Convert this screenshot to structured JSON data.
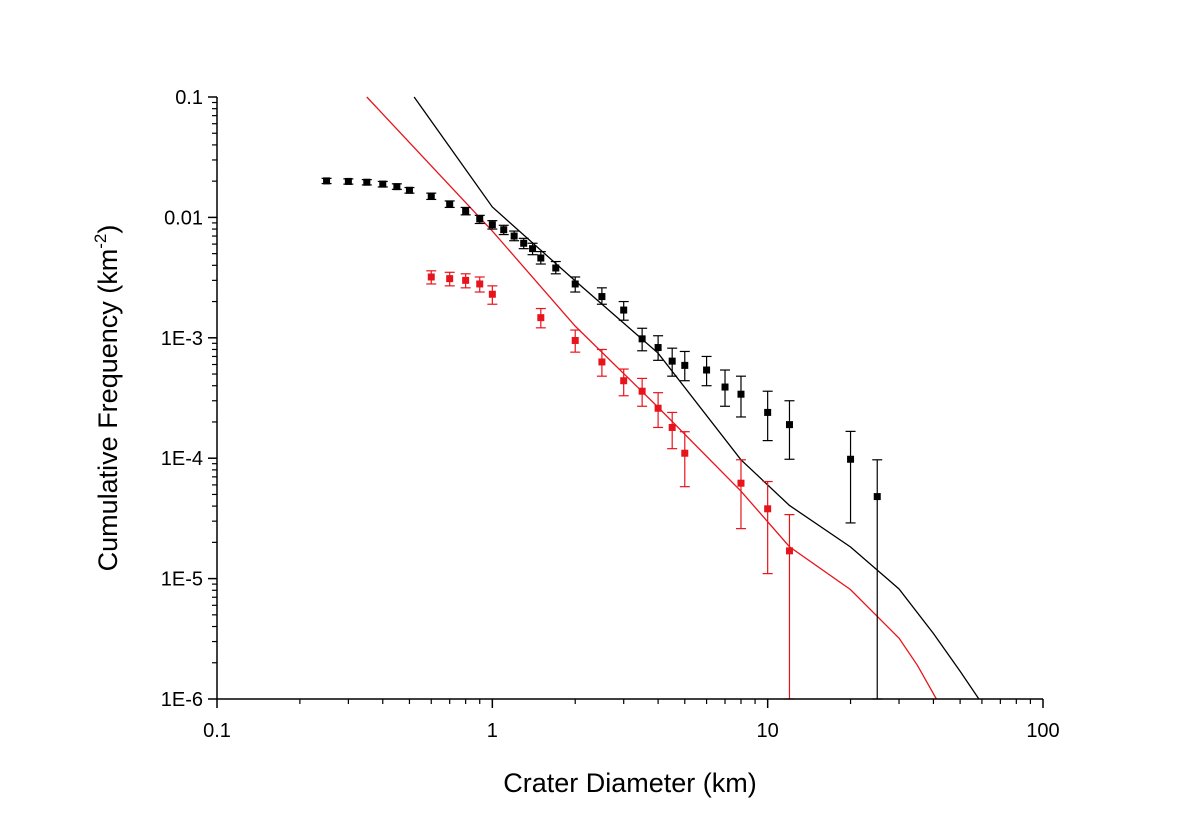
{
  "chart_data": {
    "type": "scatter",
    "title": "",
    "xlabel": "Crater Diameter (km)",
    "ylabel": "Cumulative Frequency (km",
    "ylabel_superscript": "-2",
    "ylabel_close": ")",
    "xscale": "log",
    "yscale": "log",
    "xlim": [
      0.1,
      100
    ],
    "ylim": [
      1e-06,
      0.1
    ],
    "x_ticks": [
      {
        "value": 0.1,
        "label": "0.1"
      },
      {
        "value": 1,
        "label": "1"
      },
      {
        "value": 10,
        "label": "10"
      },
      {
        "value": 100,
        "label": "100"
      }
    ],
    "y_ticks": [
      {
        "value": 0.1,
        "label": "0.1"
      },
      {
        "value": 0.01,
        "label": "0.01"
      },
      {
        "value": 0.001,
        "label": "1E-3"
      },
      {
        "value": 0.0001,
        "label": "1E-4"
      },
      {
        "value": 1e-05,
        "label": "1E-5"
      },
      {
        "value": 1e-06,
        "label": "1E-6"
      }
    ],
    "grid": false,
    "legend": "none",
    "series": [
      {
        "color": "#000000",
        "kind": "points",
        "points": [
          {
            "x": 0.25,
            "y": 0.0201,
            "lo": 0.0191,
            "hi": 0.0211
          },
          {
            "x": 0.3,
            "y": 0.0199,
            "lo": 0.0189,
            "hi": 0.0209
          },
          {
            "x": 0.35,
            "y": 0.0196,
            "lo": 0.0186,
            "hi": 0.0206
          },
          {
            "x": 0.4,
            "y": 0.0189,
            "lo": 0.0179,
            "hi": 0.0199
          },
          {
            "x": 0.45,
            "y": 0.018,
            "lo": 0.0171,
            "hi": 0.019
          },
          {
            "x": 0.5,
            "y": 0.0168,
            "lo": 0.0159,
            "hi": 0.0177
          },
          {
            "x": 0.6,
            "y": 0.015,
            "lo": 0.0141,
            "hi": 0.0159
          },
          {
            "x": 0.7,
            "y": 0.0129,
            "lo": 0.0121,
            "hi": 0.0137
          },
          {
            "x": 0.8,
            "y": 0.0113,
            "lo": 0.0105,
            "hi": 0.0121
          },
          {
            "x": 0.9,
            "y": 0.0097,
            "lo": 0.0089,
            "hi": 0.0104
          },
          {
            "x": 1.0,
            "y": 0.0087,
            "lo": 0.008,
            "hi": 0.0094
          },
          {
            "x": 1.1,
            "y": 0.0079,
            "lo": 0.0072,
            "hi": 0.0086
          },
          {
            "x": 1.2,
            "y": 0.007,
            "lo": 0.0064,
            "hi": 0.0077
          },
          {
            "x": 1.3,
            "y": 0.0061,
            "lo": 0.0055,
            "hi": 0.0067
          },
          {
            "x": 1.4,
            "y": 0.0055,
            "lo": 0.0049,
            "hi": 0.0061
          },
          {
            "x": 1.5,
            "y": 0.0046,
            "lo": 0.0041,
            "hi": 0.0052
          },
          {
            "x": 1.7,
            "y": 0.0038,
            "lo": 0.0034,
            "hi": 0.0043
          },
          {
            "x": 2.0,
            "y": 0.0028,
            "lo": 0.0024,
            "hi": 0.0032
          },
          {
            "x": 2.5,
            "y": 0.0022,
            "lo": 0.0019,
            "hi": 0.0026
          },
          {
            "x": 3.0,
            "y": 0.0017,
            "lo": 0.0014,
            "hi": 0.002
          },
          {
            "x": 3.5,
            "y": 0.00098,
            "lo": 0.00078,
            "hi": 0.0012
          },
          {
            "x": 4.0,
            "y": 0.00083,
            "lo": 0.00065,
            "hi": 0.00104
          },
          {
            "x": 4.5,
            "y": 0.00064,
            "lo": 0.00048,
            "hi": 0.00082
          },
          {
            "x": 5.0,
            "y": 0.00059,
            "lo": 0.00044,
            "hi": 0.00077
          },
          {
            "x": 6.0,
            "y": 0.00054,
            "lo": 0.0004,
            "hi": 0.0007
          },
          {
            "x": 7.0,
            "y": 0.00039,
            "lo": 0.00027,
            "hi": 0.00054
          },
          {
            "x": 8.0,
            "y": 0.00034,
            "lo": 0.00022,
            "hi": 0.00048
          },
          {
            "x": 10.0,
            "y": 0.00024,
            "lo": 0.00014,
            "hi": 0.00036
          },
          {
            "x": 12.0,
            "y": 0.00019,
            "lo": 9.8e-05,
            "hi": 0.0003
          },
          {
            "x": 20.0,
            "y": 9.8e-05,
            "lo": 2.9e-05,
            "hi": 0.000167
          },
          {
            "x": 25.0,
            "y": 4.8e-05,
            "lo": 1e-06,
            "hi": 9.7e-05
          }
        ]
      },
      {
        "color": "#e8141c",
        "kind": "points",
        "points": [
          {
            "x": 0.6,
            "y": 0.0032,
            "lo": 0.0028,
            "hi": 0.0036
          },
          {
            "x": 0.7,
            "y": 0.0031,
            "lo": 0.0027,
            "hi": 0.0035
          },
          {
            "x": 0.8,
            "y": 0.003,
            "lo": 0.0026,
            "hi": 0.0034
          },
          {
            "x": 0.9,
            "y": 0.0028,
            "lo": 0.0024,
            "hi": 0.0032
          },
          {
            "x": 1.0,
            "y": 0.0023,
            "lo": 0.0019,
            "hi": 0.0027
          },
          {
            "x": 1.5,
            "y": 0.00147,
            "lo": 0.00121,
            "hi": 0.00175
          },
          {
            "x": 2.0,
            "y": 0.00095,
            "lo": 0.00076,
            "hi": 0.00116
          },
          {
            "x": 2.5,
            "y": 0.00063,
            "lo": 0.00048,
            "hi": 0.0008
          },
          {
            "x": 3.0,
            "y": 0.00044,
            "lo": 0.00033,
            "hi": 0.00055
          },
          {
            "x": 3.5,
            "y": 0.00036,
            "lo": 0.00027,
            "hi": 0.00046
          },
          {
            "x": 4.0,
            "y": 0.00026,
            "lo": 0.00018,
            "hi": 0.00035
          },
          {
            "x": 4.5,
            "y": 0.00018,
            "lo": 0.00012,
            "hi": 0.00024
          },
          {
            "x": 5.0,
            "y": 0.00011,
            "lo": 5.8e-05,
            "hi": 0.000166
          },
          {
            "x": 8.0,
            "y": 6.2e-05,
            "lo": 2.6e-05,
            "hi": 9.7e-05
          },
          {
            "x": 10.0,
            "y": 3.8e-05,
            "lo": 1.1e-05,
            "hi": 6.4e-05
          },
          {
            "x": 12.0,
            "y": 1.7e-05,
            "lo": 1e-06,
            "hi": 3.4e-05
          }
        ]
      },
      {
        "color": "#000000",
        "kind": "line",
        "points": [
          {
            "x": 0.52,
            "y": 0.1
          },
          {
            "x": 1.0,
            "y": 0.0122
          },
          {
            "x": 2.0,
            "y": 0.00297
          },
          {
            "x": 4.0,
            "y": 0.000745
          },
          {
            "x": 8.0,
            "y": 9.7e-05
          },
          {
            "x": 12.0,
            "y": 4.05e-05
          },
          {
            "x": 20.0,
            "y": 1.83e-05
          },
          {
            "x": 30.0,
            "y": 8.2e-06
          },
          {
            "x": 40.0,
            "y": 3.5e-06
          },
          {
            "x": 50.0,
            "y": 1.7e-06
          },
          {
            "x": 58.5,
            "y": 1e-06
          }
        ]
      },
      {
        "color": "#e8141c",
        "kind": "line",
        "points": [
          {
            "x": 0.35,
            "y": 0.1
          },
          {
            "x": 1.0,
            "y": 0.0077
          },
          {
            "x": 2.0,
            "y": 0.00125
          },
          {
            "x": 4.0,
            "y": 0.000265
          },
          {
            "x": 8.0,
            "y": 5.32e-05
          },
          {
            "x": 12.0,
            "y": 1.84e-05
          },
          {
            "x": 20.0,
            "y": 8.1e-06
          },
          {
            "x": 30.0,
            "y": 3.2e-06
          },
          {
            "x": 35.0,
            "y": 1.9e-06
          },
          {
            "x": 41.0,
            "y": 1e-06
          }
        ]
      }
    ]
  }
}
